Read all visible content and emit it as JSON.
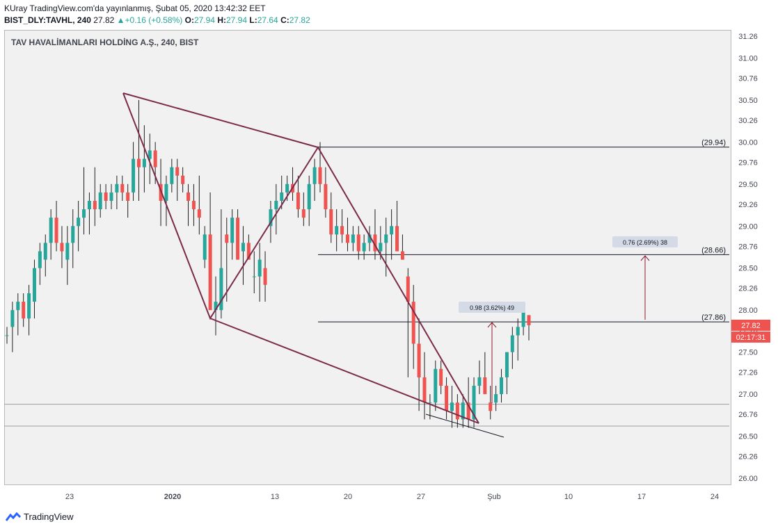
{
  "header": {
    "line1": "KUray TradingView.com'da yayınlanmış, Şubat 05, 2020 13:42:32 EET",
    "symbol": "BIST_DLY:TAVHL, 240",
    "last": "27.82",
    "change": "+0.16 (+0.58%)",
    "o_label": "O:",
    "o_val": "27.94",
    "h_label": "H:",
    "h_val": "27.94",
    "l_label": "L:",
    "l_val": "27.64",
    "c_label": "C:",
    "c_val": "27.82"
  },
  "footer": {
    "brand": "TradingView"
  },
  "chart_data": {
    "type": "candlestick",
    "title": "TAV HAVALİMANLARI HOLDİNG A.Ş., 240, BIST",
    "ylim": [
      25.9,
      31.3
    ],
    "y_ticks": [
      "31.26",
      "31.00",
      "30.76",
      "30.50",
      "30.26",
      "30.00",
      "29.76",
      "29.50",
      "29.26",
      "29.00",
      "28.76",
      "28.50",
      "28.26",
      "28.00",
      "27.76",
      "27.50",
      "27.26",
      "27.00",
      "26.76",
      "26.50",
      "26.26",
      "26.00"
    ],
    "x_ticks": [
      "23",
      "2020",
      "13",
      "20",
      "27",
      "Şub",
      "10",
      "17",
      "24"
    ],
    "candles_ohlc": [
      [
        27.7,
        27.8,
        27.6,
        27.7
      ],
      [
        27.8,
        28.1,
        27.5,
        28.0
      ],
      [
        28.0,
        28.2,
        27.7,
        28.1
      ],
      [
        28.1,
        28.2,
        27.8,
        27.9
      ],
      [
        27.9,
        28.3,
        27.7,
        28.2
      ],
      [
        28.1,
        28.6,
        27.9,
        28.5
      ],
      [
        28.5,
        28.8,
        28.3,
        28.7
      ],
      [
        28.6,
        28.9,
        28.4,
        28.8
      ],
      [
        28.8,
        29.2,
        28.6,
        29.1
      ],
      [
        29.1,
        29.3,
        28.7,
        28.8
      ],
      [
        28.8,
        29.0,
        28.5,
        28.7
      ],
      [
        28.6,
        29.0,
        28.3,
        28.8
      ],
      [
        28.8,
        29.2,
        28.5,
        29.0
      ],
      [
        29.0,
        29.3,
        28.7,
        29.1
      ],
      [
        29.1,
        29.7,
        28.9,
        29.2
      ],
      [
        29.2,
        29.4,
        28.9,
        29.3
      ],
      [
        29.3,
        29.7,
        29.0,
        29.2
      ],
      [
        29.2,
        29.5,
        29.1,
        29.4
      ],
      [
        29.4,
        29.5,
        29.2,
        29.3
      ],
      [
        29.3,
        29.5,
        29.2,
        29.4
      ],
      [
        29.4,
        29.6,
        29.2,
        29.5
      ],
      [
        29.5,
        29.6,
        29.3,
        29.4
      ],
      [
        29.4,
        29.5,
        29.1,
        29.3
      ],
      [
        29.4,
        30.0,
        29.3,
        29.8
      ],
      [
        29.8,
        30.5,
        29.3,
        29.7
      ],
      [
        29.7,
        30.2,
        29.4,
        29.8
      ],
      [
        29.8,
        30.1,
        29.5,
        29.9
      ],
      [
        29.9,
        30.0,
        29.5,
        29.7
      ],
      [
        29.5,
        29.8,
        29.0,
        29.3
      ],
      [
        29.3,
        29.6,
        29.0,
        29.5
      ],
      [
        29.5,
        29.8,
        29.4,
        29.7
      ],
      [
        29.7,
        29.8,
        29.3,
        29.6
      ],
      [
        29.6,
        29.7,
        29.4,
        29.5
      ],
      [
        29.4,
        29.5,
        29.0,
        29.3
      ],
      [
        29.3,
        29.5,
        29.0,
        29.2
      ],
      [
        29.2,
        29.6,
        28.9,
        29.1
      ],
      [
        28.6,
        29.0,
        28.5,
        28.9
      ],
      [
        28.9,
        29.4,
        28.2,
        28.0
      ],
      [
        28.0,
        28.4,
        27.7,
        28.1
      ],
      [
        28.0,
        29.2,
        27.9,
        28.5
      ],
      [
        28.9,
        29.1,
        28.1,
        28.8
      ],
      [
        28.8,
        29.2,
        28.6,
        29.1
      ],
      [
        29.1,
        29.2,
        28.6,
        28.6
      ],
      [
        28.7,
        29.0,
        28.3,
        28.8
      ],
      [
        28.8,
        28.9,
        28.6,
        28.6
      ],
      [
        28.4,
        28.7,
        28.2,
        28.4
      ],
      [
        28.4,
        28.8,
        28.1,
        28.6
      ],
      [
        28.5,
        28.7,
        28.1,
        28.3
      ],
      [
        29.0,
        29.3,
        28.8,
        29.2
      ],
      [
        29.2,
        29.5,
        28.9,
        29.3
      ],
      [
        29.3,
        29.6,
        29.2,
        29.4
      ],
      [
        29.4,
        29.6,
        29.3,
        29.5
      ],
      [
        29.5,
        29.7,
        29.3,
        29.4
      ],
      [
        29.4,
        29.6,
        29.1,
        29.2
      ],
      [
        29.2,
        29.4,
        29.0,
        29.1
      ],
      [
        29.2,
        29.6,
        29.0,
        29.5
      ],
      [
        29.5,
        29.8,
        29.3,
        29.7
      ],
      [
        29.7,
        30.0,
        29.4,
        29.5
      ],
      [
        29.5,
        29.7,
        29.1,
        29.2
      ],
      [
        29.2,
        29.4,
        28.8,
        28.9
      ],
      [
        28.9,
        29.2,
        28.7,
        29.0
      ],
      [
        29.0,
        29.2,
        28.8,
        28.9
      ],
      [
        28.9,
        29.1,
        28.7,
        28.8
      ],
      [
        28.8,
        29.0,
        28.7,
        28.9
      ],
      [
        28.9,
        29.0,
        28.6,
        28.7
      ],
      [
        28.7,
        28.9,
        28.6,
        28.8
      ],
      [
        28.8,
        29.0,
        28.7,
        28.9
      ],
      [
        28.9,
        29.2,
        28.6,
        28.7
      ],
      [
        28.7,
        29.0,
        28.6,
        28.8
      ],
      [
        28.8,
        29.1,
        28.4,
        28.9
      ],
      [
        28.9,
        29.2,
        28.6,
        29.0
      ],
      [
        29.0,
        29.3,
        28.7,
        28.7
      ],
      [
        28.7,
        28.9,
        28.6,
        28.6
      ],
      [
        28.4,
        28.5,
        27.2,
        28.1
      ],
      [
        28.1,
        28.3,
        27.3,
        27.6
      ],
      [
        27.6,
        27.9,
        26.8,
        27.2
      ],
      [
        27.2,
        27.5,
        26.7,
        26.9
      ],
      [
        26.9,
        27.0,
        26.7,
        26.9
      ],
      [
        26.9,
        27.4,
        26.8,
        27.3
      ],
      [
        27.3,
        27.4,
        27.0,
        27.1
      ],
      [
        27.1,
        27.2,
        26.7,
        26.8
      ],
      [
        26.8,
        27.1,
        26.6,
        26.9
      ],
      [
        26.9,
        27.0,
        26.6,
        26.7
      ],
      [
        26.7,
        27.0,
        26.6,
        26.9
      ],
      [
        26.9,
        27.2,
        26.6,
        26.7
      ],
      [
        26.7,
        27.2,
        26.6,
        27.1
      ],
      [
        27.1,
        27.4,
        27.0,
        27.2
      ],
      [
        27.2,
        27.5,
        27.0,
        27.0
      ],
      [
        26.9,
        27.1,
        26.7,
        26.8
      ],
      [
        26.9,
        27.1,
        26.8,
        27.0
      ],
      [
        27.0,
        27.3,
        26.9,
        27.2
      ],
      [
        27.2,
        27.5,
        27.0,
        27.5
      ],
      [
        27.5,
        27.8,
        27.3,
        27.7
      ],
      [
        27.7,
        27.9,
        27.4,
        27.8
      ],
      [
        27.8,
        28.0,
        27.7,
        28.0
      ],
      [
        27.94,
        27.94,
        27.64,
        27.82
      ]
    ],
    "horizontal_levels": [
      29.94,
      28.66,
      27.86,
      26.88,
      26.62
    ],
    "level_labels": [
      "(29.94)",
      "(28.66)",
      "(27.86)"
    ],
    "measure_labels": [
      "0.98 (3.62%) 49",
      "0.76 (2.69%) 38"
    ],
    "price_tag": "27.82",
    "countdown": "02:17:31",
    "colors": {
      "up": "#26a69a",
      "down": "#ef5350",
      "pattern": "#7b2a4a",
      "arrow": "#8b1a2a",
      "grid_bg": "#f1f1f1"
    }
  }
}
